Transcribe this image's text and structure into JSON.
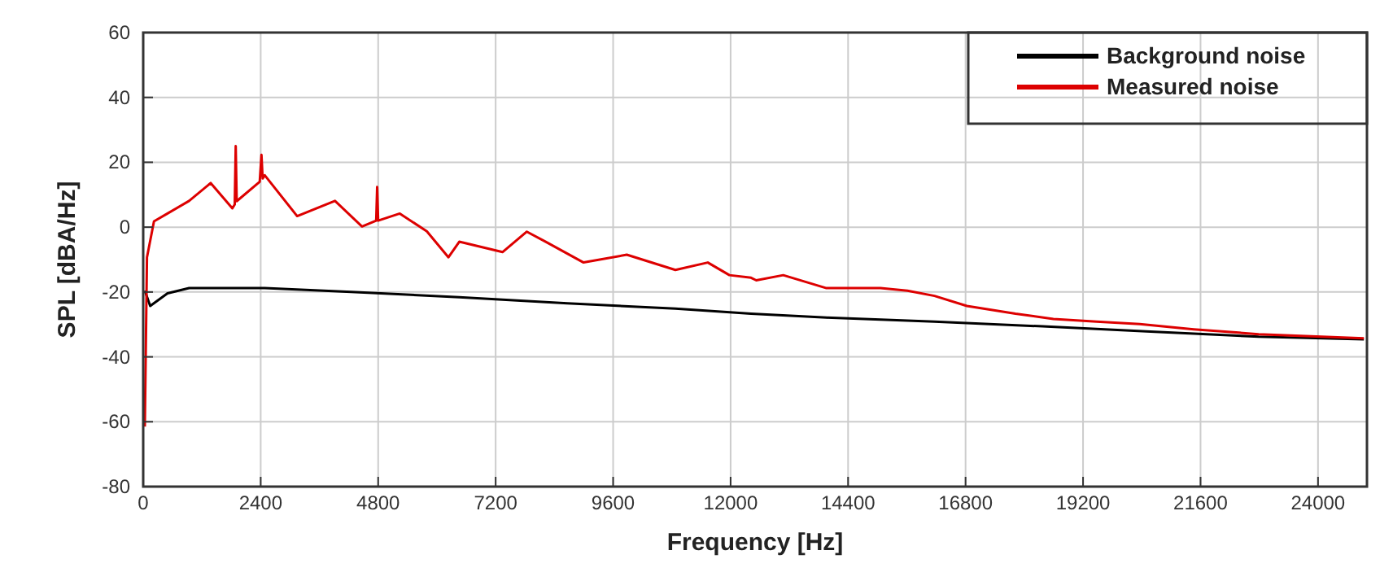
{
  "chart_data": {
    "type": "line",
    "xlabel": "Frequency [Hz]",
    "ylabel": "SPL [dBA/Hz]",
    "xlim": [
      0,
      25000
    ],
    "ylim": [
      -80,
      60
    ],
    "xticks": [
      0,
      2400,
      4800,
      7200,
      9600,
      12000,
      14400,
      16800,
      19200,
      21600,
      24000
    ],
    "yticks": [
      -80,
      -60,
      -40,
      -20,
      0,
      20,
      40,
      60
    ],
    "grid": true,
    "legend": "top right",
    "line_style": "solid",
    "marker": "none",
    "series": [
      {
        "name": "Background noise",
        "color": "#000000",
        "x": [
          33,
          143,
          496,
          938,
          2483,
          4249,
          6457,
          8665,
          10872,
          12418,
          13958,
          16165,
          18373,
          20580,
          22786,
          24937
        ],
        "values": [
          -19.6,
          -24.3,
          -20.4,
          -18.8,
          -18.8,
          -20.0,
          -21.6,
          -23.5,
          -25.1,
          -26.7,
          -27.9,
          -29.1,
          -30.6,
          -32.2,
          -33.8,
          -34.6
        ]
      },
      {
        "name": "Measured noise",
        "color": "#dd0000",
        "x": [
          33,
          77,
          220,
          496,
          938,
          1379,
          1821,
          1870,
          1890,
          1910,
          2380,
          2416,
          2440,
          2483,
          3145,
          3918,
          4470,
          4760,
          4779,
          4800,
          5242,
          5794,
          6236,
          6457,
          7340,
          7837,
          8223,
          8996,
          9879,
          10872,
          11534,
          11976,
          12418,
          12524,
          13075,
          13958,
          15061,
          15613,
          16165,
          16827,
          17820,
          18594,
          19476,
          20359,
          21462,
          22786,
          24937
        ],
        "values": [
          -61.5,
          -9.3,
          1.8,
          4.2,
          8.1,
          13.6,
          5.8,
          7,
          25,
          8,
          14,
          22.3,
          15,
          16.0,
          3.4,
          8.1,
          0.2,
          2,
          12.4,
          2,
          4.2,
          -1.3,
          -9.3,
          -4.5,
          -7.7,
          -1.4,
          -4.5,
          -10.9,
          -8.5,
          -13.2,
          -10.9,
          -14.8,
          -15.6,
          -16.4,
          -14.8,
          -18.8,
          -18.8,
          -19.6,
          -21.2,
          -24.3,
          -26.7,
          -28.3,
          -29.1,
          -29.9,
          -31.5,
          -33.0,
          -34.3
        ]
      }
    ]
  }
}
